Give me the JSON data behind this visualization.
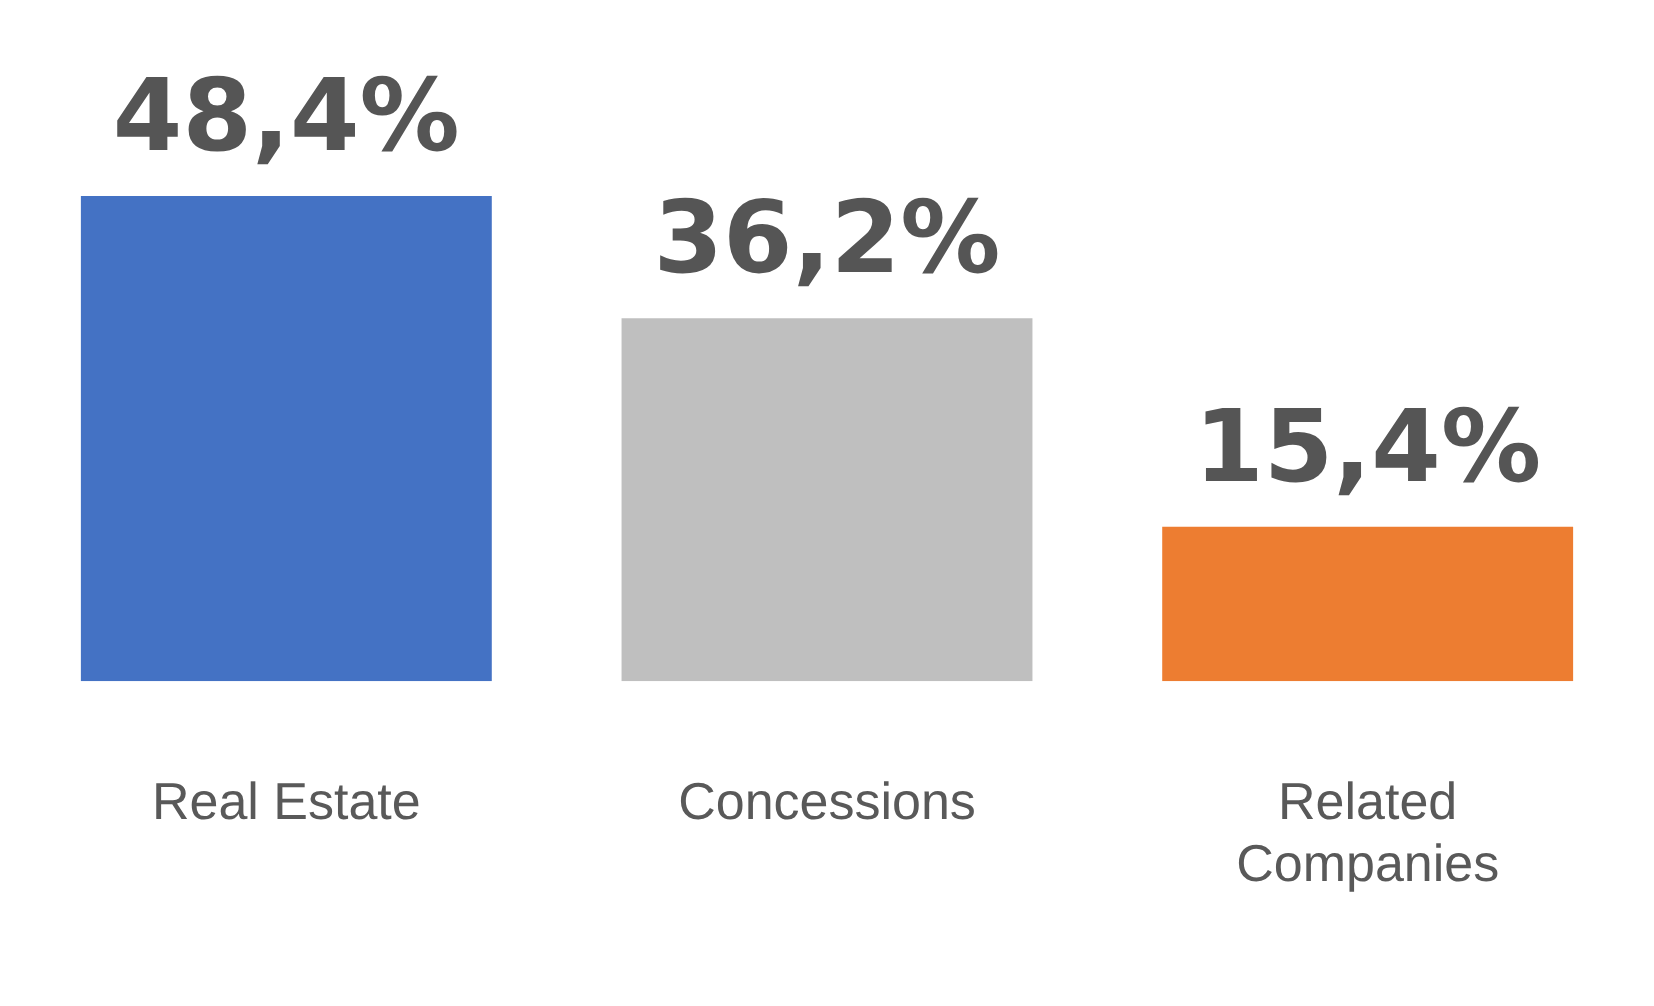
{
  "chart_data": {
    "type": "bar",
    "categories": [
      "Real Estate",
      "Concessions",
      "Related Companies"
    ],
    "values": [
      48.4,
      36.2,
      15.4
    ],
    "colors": [
      "#4472c4",
      "#bfbfbf",
      "#ed7d31"
    ],
    "value_labels": [
      "48,4%",
      "36,2%",
      "15,4%"
    ],
    "grid": false,
    "legend": false
  }
}
